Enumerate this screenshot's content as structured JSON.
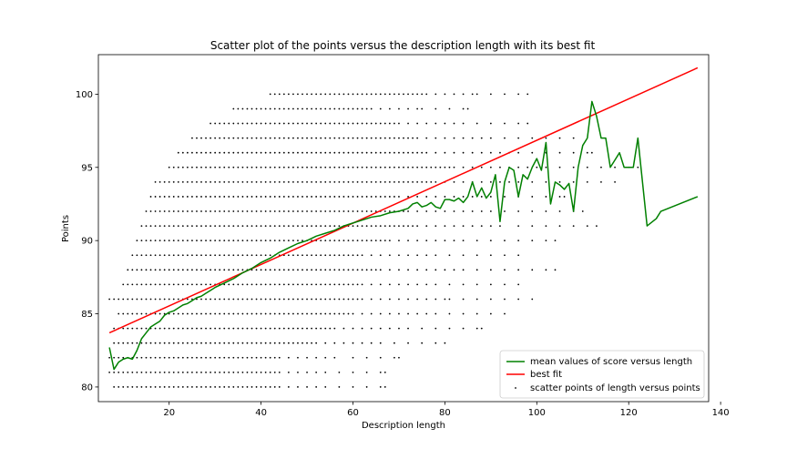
{
  "chart_data": {
    "type": "scatter",
    "title": "Scatter plot of the points versus the description length with its best fit",
    "xlabel": "Description length",
    "ylabel": "Points",
    "xlim": [
      4.6,
      137.4
    ],
    "ylim": [
      79.0,
      102.7
    ],
    "xticks": [
      20,
      40,
      60,
      80,
      100,
      120,
      140
    ],
    "yticks": [
      80,
      85,
      90,
      95,
      100
    ],
    "grid": false,
    "legend_position": "lower-right",
    "legend": {
      "mean": "mean values of score versus length",
      "fit": "best fit",
      "scatter": "scatter points of length versus points"
    },
    "colors": {
      "mean": "#008000",
      "fit": "#ff0000",
      "scatter": "#000000"
    },
    "series": [
      {
        "name": "mean values of score versus length",
        "type": "line",
        "x": [
          7,
          8,
          9,
          10,
          11,
          12,
          13,
          14,
          15,
          16,
          17,
          18,
          19,
          20,
          21,
          22,
          23,
          24,
          25,
          26,
          27,
          28,
          29,
          30,
          32,
          34,
          36,
          38,
          40,
          42,
          44,
          46,
          48,
          50,
          52,
          54,
          56,
          58,
          60,
          62,
          64,
          66,
          68,
          70,
          72,
          73,
          74,
          75,
          76,
          77,
          78,
          79,
          80,
          81,
          82,
          83,
          84,
          85,
          86,
          87,
          88,
          89,
          90,
          91,
          92,
          93,
          94,
          95,
          96,
          97,
          98,
          99,
          100,
          101,
          102,
          103,
          104,
          105,
          106,
          107,
          108,
          109,
          110,
          111,
          112,
          113,
          114,
          115,
          116,
          117,
          118,
          119,
          120,
          121,
          122,
          124,
          126,
          127,
          135
        ],
        "y": [
          82.7,
          81.2,
          81.7,
          81.9,
          82.0,
          81.9,
          82.5,
          83.3,
          83.7,
          84.1,
          84.3,
          84.5,
          84.9,
          85.1,
          85.2,
          85.4,
          85.6,
          85.7,
          85.9,
          86.1,
          86.2,
          86.4,
          86.6,
          86.8,
          87.1,
          87.4,
          87.8,
          88.1,
          88.5,
          88.8,
          89.2,
          89.5,
          89.8,
          90.0,
          90.3,
          90.5,
          90.7,
          91.0,
          91.2,
          91.4,
          91.6,
          91.7,
          91.9,
          92.0,
          92.2,
          92.5,
          92.6,
          92.3,
          92.4,
          92.6,
          92.3,
          92.2,
          92.8,
          92.8,
          92.7,
          92.9,
          92.6,
          93.0,
          94.0,
          93.0,
          93.6,
          92.9,
          93.3,
          94.5,
          91.3,
          94.0,
          95.0,
          94.8,
          93.0,
          94.5,
          94.2,
          95.0,
          95.6,
          94.8,
          96.7,
          92.5,
          94.0,
          93.8,
          93.5,
          93.9,
          92.0,
          95.0,
          96.5,
          97.0,
          99.5,
          98.5,
          97.0,
          97.0,
          95.0,
          95.5,
          96.0,
          95.0,
          95.0,
          95.0,
          97.0,
          91.0,
          91.5,
          92.0,
          93.0
        ]
      },
      {
        "name": "best fit",
        "type": "line",
        "x": [
          7,
          135
        ],
        "y": [
          83.7,
          101.8
        ]
      },
      {
        "name": "scatter points of length versus points",
        "type": "scatter",
        "rows": [
          {
            "y": 80,
            "x_min": 8,
            "x_max": 67
          },
          {
            "y": 81,
            "x_min": 7,
            "x_max": 67
          },
          {
            "y": 82,
            "x_min": 7,
            "x_max": 70
          },
          {
            "y": 83,
            "x_min": 8,
            "x_max": 80
          },
          {
            "y": 84,
            "x_min": 8,
            "x_max": 88
          },
          {
            "y": 85,
            "x_min": 9,
            "x_max": 93
          },
          {
            "y": 86,
            "x_min": 7,
            "x_max": 99
          },
          {
            "y": 87,
            "x_min": 10,
            "x_max": 96
          },
          {
            "y": 88,
            "x_min": 11,
            "x_max": 104
          },
          {
            "y": 89,
            "x_min": 12,
            "x_max": 96
          },
          {
            "y": 90,
            "x_min": 13,
            "x_max": 104
          },
          {
            "y": 91,
            "x_min": 14,
            "x_max": 113
          },
          {
            "y": 92,
            "x_min": 15,
            "x_max": 110
          },
          {
            "y": 93,
            "x_min": 16,
            "x_max": 106
          },
          {
            "y": 94,
            "x_min": 17,
            "x_max": 117
          },
          {
            "y": 95,
            "x_min": 20,
            "x_max": 122
          },
          {
            "y": 96,
            "x_min": 22,
            "x_max": 112
          },
          {
            "y": 97,
            "x_min": 25,
            "x_max": 108
          },
          {
            "y": 98,
            "x_min": 29,
            "x_max": 98
          },
          {
            "y": 99,
            "x_min": 34,
            "x_max": 85
          },
          {
            "y": 100,
            "x_min": 42,
            "x_max": 98
          }
        ]
      }
    ]
  }
}
